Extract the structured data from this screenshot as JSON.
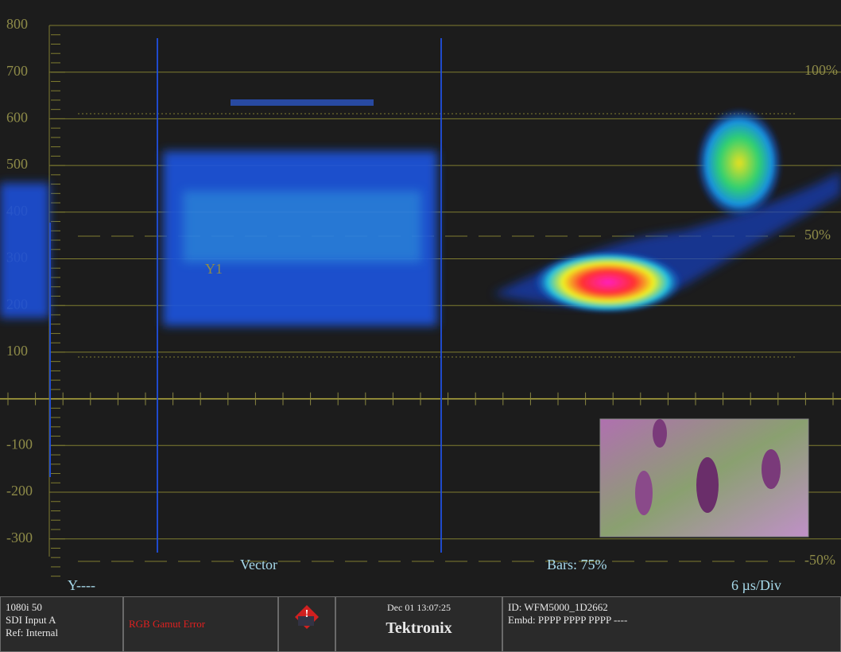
{
  "graticule": {
    "left_labels": [
      "800",
      "700",
      "600",
      "500",
      "400",
      "300",
      "200",
      "100",
      "-100",
      "-200",
      "-300"
    ],
    "right_labels": [
      "100%",
      "50%",
      "-50%"
    ],
    "trace_label": "Y1"
  },
  "overlay": {
    "channel": "Y----",
    "vector": "Vector",
    "bars": "Bars: 75%",
    "sweep": "6 µs/Div"
  },
  "status_bar": {
    "format": "1080i 50",
    "input": "SDI Input A",
    "reference": "Ref: Internal",
    "alarm": "RGB Gamut Error",
    "datetime": "Dec 01 13:07:25",
    "brand": "Tektronix",
    "id": "ID: WFM5000_1D2662",
    "embedded": "Embd: PPPP PPPP PPPP ----"
  }
}
